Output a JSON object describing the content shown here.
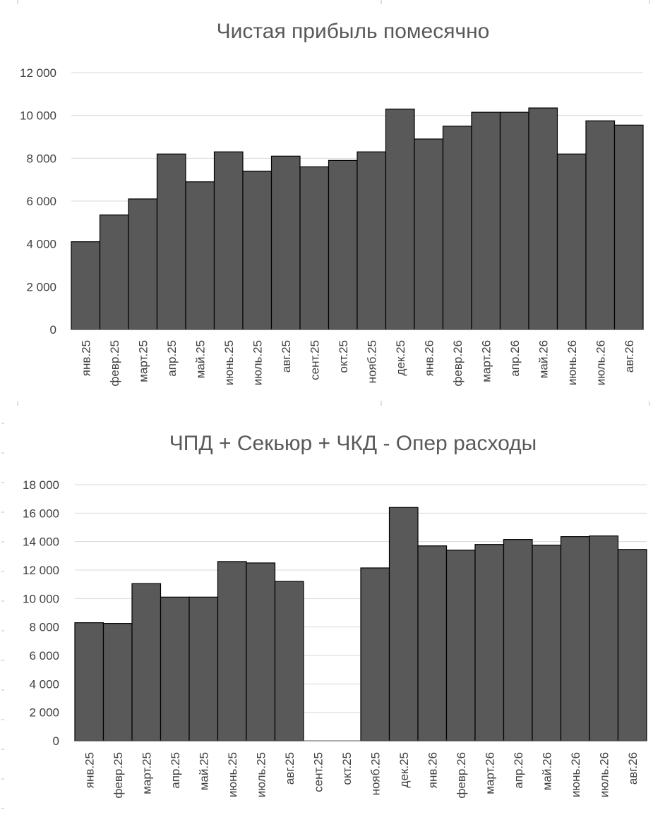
{
  "chart_data": [
    {
      "type": "bar",
      "title": "Чистая прибыль помесячно",
      "categories": [
        "янв.25",
        "февр.25",
        "март.25",
        "апр.25",
        "май.25",
        "июнь.25",
        "июль.25",
        "авг.25",
        "сент.25",
        "окт.25",
        "нояб.25",
        "дек.25",
        "янв.26",
        "февр.26",
        "март.26",
        "апр.26",
        "май.26",
        "июнь.26",
        "июль.26",
        "авг.26"
      ],
      "values": [
        4100,
        5350,
        6100,
        8200,
        6900,
        8300,
        7400,
        8100,
        7600,
        7900,
        8300,
        10300,
        8900,
        9500,
        10150,
        10150,
        10350,
        8200,
        9750,
        9550
      ],
      "ylim": [
        0,
        12000
      ],
      "yticks": [
        0,
        2000,
        4000,
        6000,
        8000,
        10000,
        12000
      ],
      "ytick_labels": [
        "0",
        "2 000",
        "4 000",
        "6 000",
        "8 000",
        "10 000",
        "12 000"
      ],
      "grid": true,
      "bar_color": "#595959"
    },
    {
      "type": "bar",
      "title": "ЧПД + Секьюр + ЧКД - Опер расходы",
      "categories": [
        "янв.25",
        "февр.25",
        "март.25",
        "апр.25",
        "май.25",
        "июнь.25",
        "июль.25",
        "авг.25",
        "сент.25",
        "окт.25",
        "нояб.25",
        "дек.25",
        "янв.26",
        "февр.26",
        "март.26",
        "апр.26",
        "май.26",
        "июнь.26",
        "июль.26",
        "авг.26"
      ],
      "values": [
        8300,
        8250,
        11050,
        10100,
        10100,
        12600,
        12500,
        11200,
        null,
        null,
        12150,
        16400,
        13700,
        13400,
        13800,
        14150,
        13750,
        14350,
        14400,
        13450
      ],
      "ylim": [
        0,
        18000
      ],
      "yticks": [
        0,
        2000,
        4000,
        6000,
        8000,
        10000,
        12000,
        14000,
        16000,
        18000
      ],
      "ytick_labels": [
        "0",
        "2 000",
        "4 000",
        "6 000",
        "8 000",
        "10 000",
        "12 000",
        "14 000",
        "16 000",
        "18 000"
      ],
      "grid": true,
      "bar_color": "#595959"
    }
  ]
}
